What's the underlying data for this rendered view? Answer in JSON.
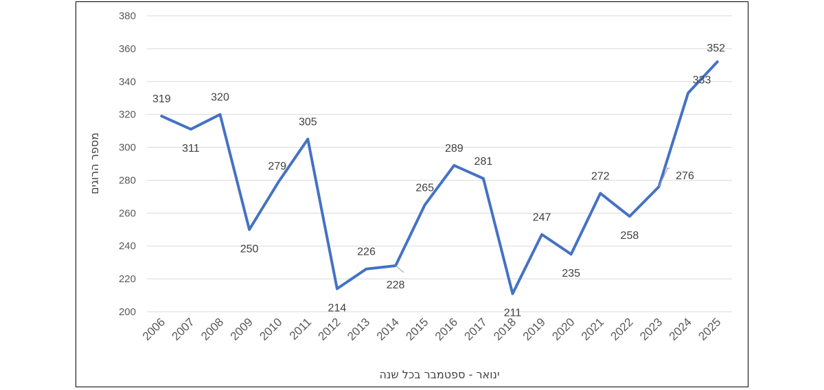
{
  "chart_data": {
    "type": "line",
    "title": "",
    "xlabel": "ינואר - ספטמבר בכל שנה",
    "ylabel": "מספר הרוגים",
    "ylim": [
      200,
      380
    ],
    "yticks": [
      200,
      220,
      240,
      260,
      280,
      300,
      320,
      340,
      360,
      380
    ],
    "grid": true,
    "legend": "none",
    "categories": [
      "2006",
      "2007",
      "2008",
      "2009",
      "2010",
      "2011",
      "2012",
      "2013",
      "2014",
      "2015",
      "2016",
      "2017",
      "2018",
      "2019",
      "2020",
      "2021",
      "2022",
      "2023",
      "2024",
      "2025"
    ],
    "series": [
      {
        "name": "",
        "color": "#4472C4",
        "values": [
          319,
          311,
          320,
          250,
          279,
          305,
          214,
          226,
          228,
          265,
          289,
          281,
          211,
          247,
          235,
          272,
          258,
          276,
          333,
          352
        ]
      }
    ]
  }
}
